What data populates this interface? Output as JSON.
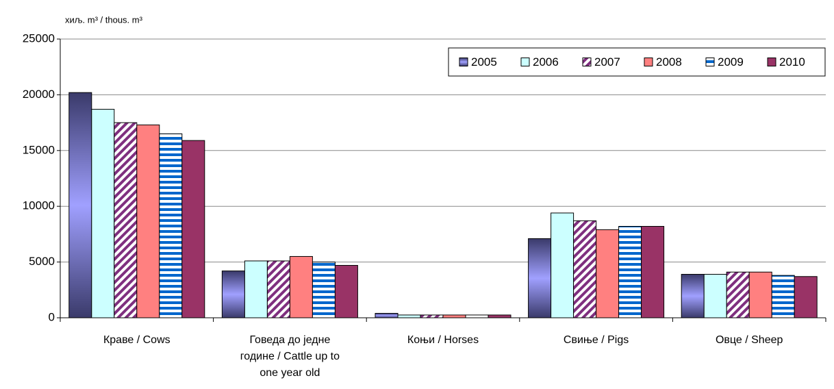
{
  "chart_data": {
    "type": "bar",
    "y_label": "хиљ. m³ / thous. m³",
    "categories": [
      "Краве / Cows",
      "Говеда до једне године / Cattle up to one year old",
      "Коњи / Horses",
      "Свиње / Pigs",
      "Овце / Sheep"
    ],
    "series": [
      {
        "name": "2005",
        "color": "#8c8cf0",
        "fill": "gradient",
        "values": [
          20200,
          4200,
          400,
          7100,
          3900
        ]
      },
      {
        "name": "2006",
        "color": "#ccffff",
        "fill": "solid",
        "values": [
          18700,
          5100,
          250,
          9400,
          3900
        ]
      },
      {
        "name": "2007",
        "color": "#7f2f7f",
        "fill": "diagonal-stripes",
        "values": [
          17500,
          5100,
          250,
          8700,
          4100
        ]
      },
      {
        "name": "2008",
        "color": "#ff8080",
        "fill": "solid",
        "values": [
          17300,
          5500,
          250,
          7900,
          4100
        ]
      },
      {
        "name": "2009",
        "color": "#0066cc",
        "fill": "horizontal-stripes",
        "values": [
          16500,
          5000,
          250,
          8200,
          3800
        ]
      },
      {
        "name": "2010",
        "color": "#993366",
        "fill": "solid",
        "values": [
          15900,
          4700,
          250,
          8200,
          3700
        ]
      }
    ],
    "ylim": [
      0,
      25000
    ],
    "yticks": [
      0,
      5000,
      10000,
      15000,
      20000,
      25000
    ],
    "grid": true,
    "legend": "top-right"
  }
}
